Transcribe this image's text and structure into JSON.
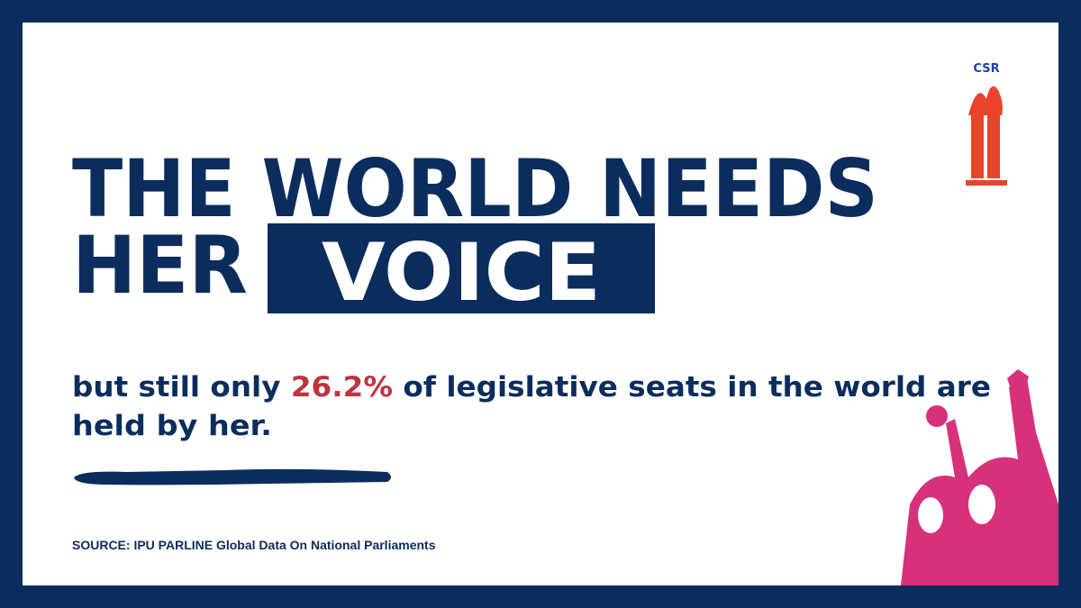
{
  "headline": {
    "line1": "THE WORLD NEEDS",
    "line2": "HER",
    "highlight": "VOICE"
  },
  "body": {
    "before": "but still only ",
    "stat": "26.2%",
    "after_line1": " of legislative seats in the world are",
    "line2": "held by her."
  },
  "logo": {
    "text": "CSR"
  },
  "source": "SOURCE: IPU PARLINE Global Data On National Parliaments"
}
